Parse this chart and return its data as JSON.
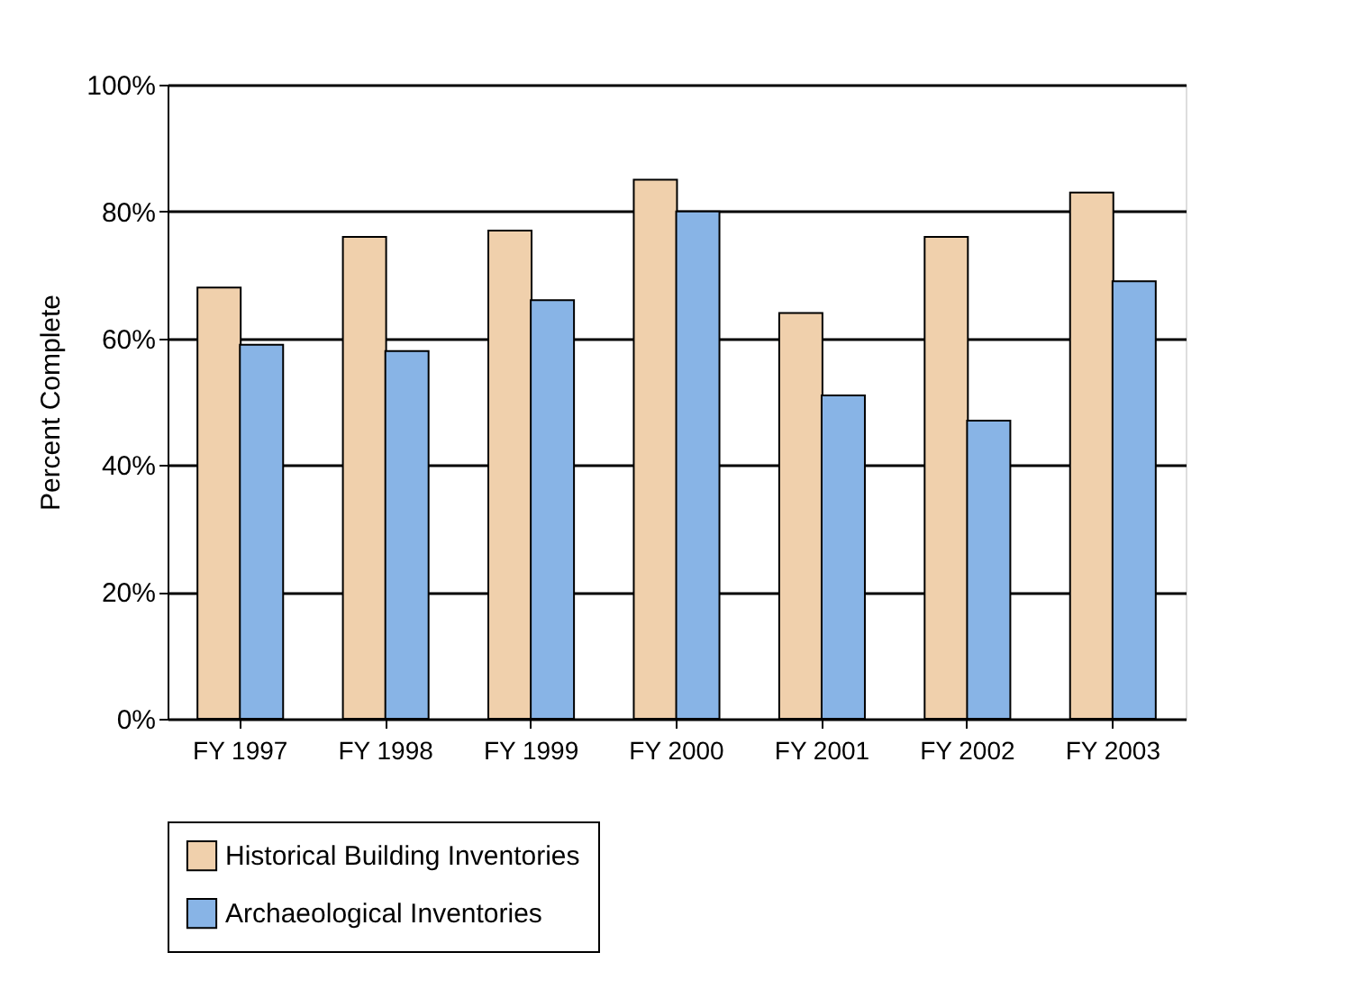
{
  "chart_data": {
    "type": "bar",
    "ylabel": "Percent Complete",
    "categories": [
      "FY 1997",
      "FY 1998",
      "FY 1999",
      "FY 2000",
      "FY 2001",
      "FY 2002",
      "FY 2003"
    ],
    "series": [
      {
        "name": "Historical Building Inventories",
        "color": "#f0d0ac",
        "values": [
          68,
          76,
          77,
          85,
          64,
          76,
          83
        ]
      },
      {
        "name": "Archaeological Inventories",
        "color": "#88b4e6",
        "values": [
          59,
          58,
          66,
          80,
          51,
          47,
          69
        ]
      }
    ],
    "ylim": [
      0,
      100
    ],
    "yticks": [
      {
        "value": 0,
        "label": "0%"
      },
      {
        "value": 20,
        "label": "20%"
      },
      {
        "value": 40,
        "label": "40%"
      },
      {
        "value": 60,
        "label": "60%"
      },
      {
        "value": 80,
        "label": "80%"
      },
      {
        "value": 100,
        "label": "100%"
      }
    ],
    "grid": "y",
    "legend": "bottom"
  }
}
